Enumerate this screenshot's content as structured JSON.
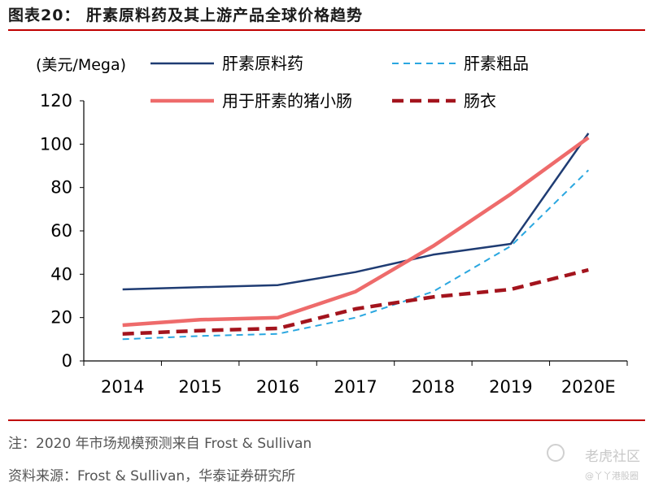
{
  "figure": {
    "title": "图表20：  肝素原料药及其上游产品全球价格趋势",
    "note": "注：2020 年市场规模预测来自 Frost & Sullivan",
    "source": "资料来源：Frost & Sullivan，华泰证券研究所"
  },
  "watermark": {
    "text": "老虎社区",
    "subtext": "@丫丫港股圈"
  },
  "chart_data": {
    "type": "line",
    "ylabel": "(美元/Mega)",
    "categories": [
      "2014",
      "2015",
      "2016",
      "2017",
      "2018",
      "2019",
      "2020E"
    ],
    "ylim": [
      0,
      120
    ],
    "yticks": [
      0,
      20,
      40,
      60,
      80,
      100,
      120
    ],
    "grid": false,
    "legend_position": "top",
    "series": [
      {
        "name": "肝素原料药",
        "values": [
          33,
          34,
          35,
          41,
          49,
          54,
          105
        ],
        "color": "#1f3c73",
        "style": "solid"
      },
      {
        "name": "肝素粗品",
        "values": [
          10,
          11.5,
          12.5,
          20,
          32,
          53,
          88
        ],
        "color": "#2aa7e0",
        "style": "dashed"
      },
      {
        "name": "用于肝素的猪小肠",
        "values": [
          16.5,
          19,
          20,
          32,
          53,
          77,
          103
        ],
        "color": "#ee6b6b",
        "style": "thick"
      },
      {
        "name": "肠衣",
        "values": [
          12.5,
          14,
          15,
          24,
          29.5,
          33,
          42
        ],
        "color": "#a3141d",
        "style": "bolddash"
      }
    ]
  }
}
